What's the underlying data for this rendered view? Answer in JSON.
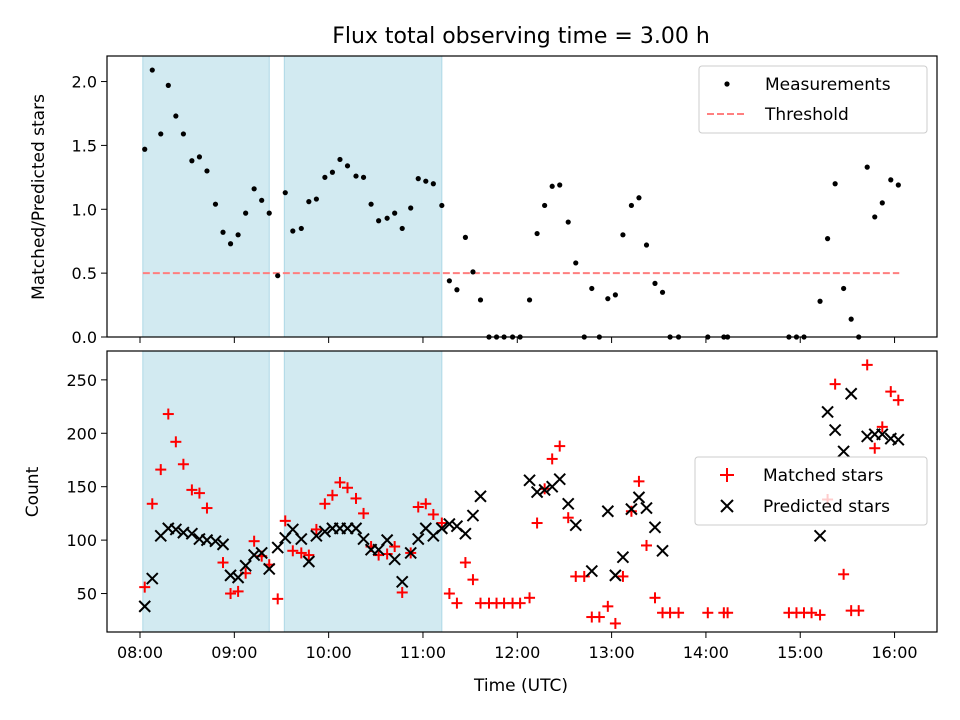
{
  "chart_data": [
    {
      "type": "scatter",
      "title": "Flux total observing time = 3.00 h",
      "xlabel": "",
      "ylabel": "Matched/Predicted stars",
      "xlim": [
        7.65,
        16.45
      ],
      "ylim": [
        0,
        2.2
      ],
      "yticks": [
        0.0,
        0.5,
        1.0,
        1.5,
        2.0
      ],
      "ytick_labels": [
        "0.0",
        "0.5",
        "1.0",
        "1.5",
        "2.0"
      ],
      "xticks": [
        8,
        9,
        10,
        11,
        12,
        13,
        14,
        15,
        16
      ],
      "shaded_intervals": [
        [
          8.03,
          9.37
        ],
        [
          9.53,
          11.2
        ]
      ],
      "shade_color": "#add8e6",
      "threshold": {
        "name": "Threshold",
        "value": 0.5,
        "x_range": [
          8.03,
          16.05
        ],
        "color": "#ff7f7f"
      },
      "legend": {
        "position": "top-right",
        "entries": [
          "Measurements",
          "Threshold"
        ]
      },
      "series": [
        {
          "name": "Measurements",
          "color": "#000000",
          "points": [
            [
              8.05,
              1.47
            ],
            [
              8.13,
              2.09
            ],
            [
              8.22,
              1.59
            ],
            [
              8.3,
              1.97
            ],
            [
              8.38,
              1.73
            ],
            [
              8.46,
              1.59
            ],
            [
              8.55,
              1.38
            ],
            [
              8.63,
              1.41
            ],
            [
              8.71,
              1.3
            ],
            [
              8.8,
              1.04
            ],
            [
              8.88,
              0.82
            ],
            [
              8.96,
              0.73
            ],
            [
              9.04,
              0.8
            ],
            [
              9.12,
              0.97
            ],
            [
              9.21,
              1.16
            ],
            [
              9.29,
              1.07
            ],
            [
              9.37,
              0.97
            ],
            [
              9.46,
              0.48
            ],
            [
              9.54,
              1.13
            ],
            [
              9.62,
              0.83
            ],
            [
              9.71,
              0.85
            ],
            [
              9.79,
              1.06
            ],
            [
              9.87,
              1.08
            ],
            [
              9.96,
              1.25
            ],
            [
              10.04,
              1.29
            ],
            [
              10.12,
              1.39
            ],
            [
              10.2,
              1.34
            ],
            [
              10.29,
              1.26
            ],
            [
              10.37,
              1.25
            ],
            [
              10.45,
              1.04
            ],
            [
              10.53,
              0.91
            ],
            [
              10.62,
              0.93
            ],
            [
              10.7,
              0.97
            ],
            [
              10.78,
              0.85
            ],
            [
              10.87,
              1.01
            ],
            [
              10.95,
              1.24
            ],
            [
              11.03,
              1.22
            ],
            [
              11.11,
              1.2
            ],
            [
              11.2,
              1.03
            ],
            [
              11.28,
              0.44
            ],
            [
              11.36,
              0.37
            ],
            [
              11.45,
              0.78
            ],
            [
              11.53,
              0.51
            ],
            [
              11.61,
              0.29
            ],
            [
              11.7,
              0.0
            ],
            [
              11.78,
              0.0
            ],
            [
              11.86,
              0.0
            ],
            [
              11.95,
              0.0
            ],
            [
              12.03,
              0.0
            ],
            [
              12.13,
              0.29
            ],
            [
              12.21,
              0.81
            ],
            [
              12.29,
              1.03
            ],
            [
              12.37,
              1.18
            ],
            [
              12.45,
              1.19
            ],
            [
              12.54,
              0.9
            ],
            [
              12.62,
              0.58
            ],
            [
              12.71,
              0.0
            ],
            [
              12.79,
              0.38
            ],
            [
              12.87,
              0.0
            ],
            [
              12.96,
              0.3
            ],
            [
              13.04,
              0.33
            ],
            [
              13.12,
              0.8
            ],
            [
              13.21,
              1.03
            ],
            [
              13.29,
              1.09
            ],
            [
              13.37,
              0.72
            ],
            [
              13.46,
              0.42
            ],
            [
              13.54,
              0.35
            ],
            [
              13.62,
              0.0
            ],
            [
              13.71,
              0.0
            ],
            [
              14.02,
              0.0
            ],
            [
              14.19,
              0.0
            ],
            [
              14.23,
              0.0
            ],
            [
              14.88,
              0.0
            ],
            [
              14.96,
              0.0
            ],
            [
              15.04,
              0.0
            ],
            [
              15.21,
              0.28
            ],
            [
              15.29,
              0.77
            ],
            [
              15.37,
              1.2
            ],
            [
              15.46,
              0.38
            ],
            [
              15.54,
              0.14
            ],
            [
              15.62,
              0.0
            ],
            [
              15.71,
              1.33
            ],
            [
              15.79,
              0.94
            ],
            [
              15.87,
              1.05
            ],
            [
              15.96,
              1.23
            ],
            [
              16.04,
              1.19
            ]
          ]
        }
      ]
    },
    {
      "type": "scatter",
      "title": "",
      "xlabel": "Time (UTC)",
      "ylabel": "Count",
      "xlim": [
        7.65,
        16.45
      ],
      "ylim": [
        14,
        277
      ],
      "yticks": [
        50,
        100,
        150,
        200,
        250
      ],
      "ytick_labels": [
        "50",
        "100",
        "150",
        "200",
        "250"
      ],
      "xticks": [
        8,
        9,
        10,
        11,
        12,
        13,
        14,
        15,
        16
      ],
      "xtick_labels": [
        "08:00",
        "09:00",
        "10:00",
        "11:00",
        "12:00",
        "13:00",
        "14:00",
        "15:00",
        "16:00"
      ],
      "shaded_intervals": [
        [
          8.03,
          9.37
        ],
        [
          9.53,
          11.2
        ]
      ],
      "shade_color": "#add8e6",
      "legend": {
        "position": "center-right",
        "entries": [
          "Matched stars",
          "Predicted stars"
        ]
      },
      "series": [
        {
          "name": "Matched stars",
          "marker": "+",
          "color": "#ff0000",
          "points": [
            [
              8.05,
              56
            ],
            [
              8.13,
              134
            ],
            [
              8.22,
              166
            ],
            [
              8.3,
              218
            ],
            [
              8.38,
              192
            ],
            [
              8.46,
              171
            ],
            [
              8.55,
              147
            ],
            [
              8.63,
              144
            ],
            [
              8.71,
              130
            ],
            [
              8.88,
              79
            ],
            [
              8.96,
              50
            ],
            [
              9.04,
              52
            ],
            [
              9.12,
              69
            ],
            [
              9.21,
              99
            ],
            [
              9.29,
              85
            ],
            [
              9.37,
              77
            ],
            [
              9.46,
              45
            ],
            [
              9.54,
              118
            ],
            [
              9.62,
              90
            ],
            [
              9.71,
              88
            ],
            [
              9.79,
              86
            ],
            [
              9.87,
              110
            ],
            [
              9.96,
              134
            ],
            [
              10.04,
              142
            ],
            [
              10.12,
              154
            ],
            [
              10.2,
              149
            ],
            [
              10.29,
              139
            ],
            [
              10.37,
              125
            ],
            [
              10.45,
              94
            ],
            [
              10.53,
              86
            ],
            [
              10.62,
              87
            ],
            [
              10.7,
              94
            ],
            [
              10.78,
              51
            ],
            [
              10.87,
              88
            ],
            [
              10.95,
              131
            ],
            [
              11.03,
              134
            ],
            [
              11.11,
              124
            ],
            [
              11.2,
              116
            ],
            [
              11.28,
              50
            ],
            [
              11.36,
              41
            ],
            [
              11.45,
              79
            ],
            [
              11.53,
              63
            ],
            [
              11.61,
              41
            ],
            [
              11.7,
              41
            ],
            [
              11.78,
              41
            ],
            [
              11.86,
              41
            ],
            [
              11.95,
              41
            ],
            [
              12.03,
              41
            ],
            [
              12.13,
              46
            ],
            [
              12.21,
              116
            ],
            [
              12.29,
              148
            ],
            [
              12.37,
              176
            ],
            [
              12.45,
              188
            ],
            [
              12.54,
              121
            ],
            [
              12.62,
              66
            ],
            [
              12.71,
              66
            ],
            [
              12.79,
              28
            ],
            [
              12.87,
              28
            ],
            [
              12.96,
              38
            ],
            [
              13.04,
              22
            ],
            [
              13.12,
              66
            ],
            [
              13.21,
              127
            ],
            [
              13.29,
              155
            ],
            [
              13.37,
              95
            ],
            [
              13.46,
              46
            ],
            [
              13.54,
              32
            ],
            [
              13.62,
              32
            ],
            [
              13.71,
              32
            ],
            [
              14.02,
              32
            ],
            [
              14.19,
              32
            ],
            [
              14.23,
              32
            ],
            [
              14.88,
              32
            ],
            [
              14.96,
              32
            ],
            [
              15.04,
              32
            ],
            [
              15.12,
              32
            ],
            [
              15.21,
              30
            ],
            [
              15.29,
              138
            ],
            [
              15.37,
              246
            ],
            [
              15.46,
              68
            ],
            [
              15.54,
              34
            ],
            [
              15.62,
              34
            ],
            [
              15.71,
              264
            ],
            [
              15.79,
              186
            ],
            [
              15.87,
              206
            ],
            [
              15.96,
              239
            ],
            [
              16.04,
              231
            ]
          ]
        },
        {
          "name": "Predicted stars",
          "marker": "x",
          "color": "#000000",
          "points": [
            [
              8.05,
              38
            ],
            [
              8.13,
              64
            ],
            [
              8.22,
              104
            ],
            [
              8.3,
              111
            ],
            [
              8.38,
              110
            ],
            [
              8.46,
              107
            ],
            [
              8.55,
              106
            ],
            [
              8.63,
              101
            ],
            [
              8.71,
              100
            ],
            [
              8.8,
              99
            ],
            [
              8.88,
              96
            ],
            [
              8.96,
              67
            ],
            [
              9.04,
              65
            ],
            [
              9.12,
              76
            ],
            [
              9.21,
              86
            ],
            [
              9.29,
              88
            ],
            [
              9.37,
              73
            ],
            [
              9.46,
              93
            ],
            [
              9.54,
              102
            ],
            [
              9.62,
              110
            ],
            [
              9.71,
              101
            ],
            [
              9.79,
              80
            ],
            [
              9.87,
              104
            ],
            [
              9.96,
              108
            ],
            [
              10.04,
              111
            ],
            [
              10.12,
              111
            ],
            [
              10.2,
              111
            ],
            [
              10.29,
              111
            ],
            [
              10.37,
              101
            ],
            [
              10.45,
              91
            ],
            [
              10.53,
              91
            ],
            [
              10.62,
              100
            ],
            [
              10.7,
              82
            ],
            [
              10.78,
              61
            ],
            [
              10.87,
              88
            ],
            [
              10.95,
              101
            ],
            [
              11.03,
              111
            ],
            [
              11.11,
              104
            ],
            [
              11.2,
              111
            ],
            [
              11.28,
              115
            ],
            [
              11.36,
              113
            ],
            [
              11.45,
              106
            ],
            [
              11.53,
              123
            ],
            [
              11.61,
              141
            ],
            [
              12.13,
              156
            ],
            [
              12.21,
              145
            ],
            [
              12.29,
              147
            ],
            [
              12.37,
              150
            ],
            [
              12.45,
              157
            ],
            [
              12.54,
              134
            ],
            [
              12.62,
              114
            ],
            [
              12.79,
              71
            ],
            [
              12.96,
              127
            ],
            [
              13.04,
              67
            ],
            [
              13.12,
              84
            ],
            [
              13.21,
              129
            ],
            [
              13.29,
              140
            ],
            [
              13.37,
              130
            ],
            [
              13.46,
              112
            ],
            [
              13.54,
              90
            ],
            [
              15.21,
              104
            ],
            [
              15.29,
              220
            ],
            [
              15.37,
              203
            ],
            [
              15.46,
              183
            ],
            [
              15.54,
              237
            ],
            [
              15.71,
              197
            ],
            [
              15.79,
              199
            ],
            [
              15.87,
              199
            ],
            [
              15.96,
              195
            ],
            [
              16.04,
              194
            ]
          ]
        }
      ]
    }
  ]
}
